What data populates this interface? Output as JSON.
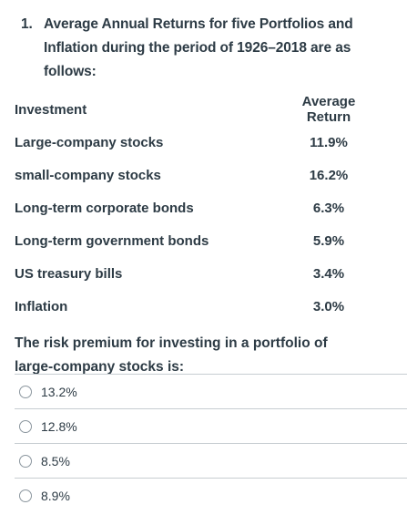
{
  "question": {
    "number": "1.",
    "text": "Average Annual Returns for five Portfolios and Inflation during the period of 1926–2018 are as follows:",
    "table": {
      "headers": [
        "Investment",
        "Average Return"
      ],
      "rows": [
        {
          "investment": "Large-company stocks",
          "return": "11.9%"
        },
        {
          "investment": "small-company stocks",
          "return": "16.2%"
        },
        {
          "investment": "Long-term corporate bonds",
          "return": "6.3%"
        },
        {
          "investment": "Long-term government bonds",
          "return": "5.9%"
        },
        {
          "investment": "US treasury bills",
          "return": "3.4%"
        },
        {
          "investment": "Inflation",
          "return": "3.0%"
        }
      ]
    },
    "prompt": "The risk premium for investing in a portfolio of large-company stocks is:",
    "answers": [
      {
        "label": "13.2%",
        "selected": false
      },
      {
        "label": "12.8%",
        "selected": false
      },
      {
        "label": "8.5%",
        "selected": false
      },
      {
        "label": "8.9%",
        "selected": false
      }
    ]
  }
}
